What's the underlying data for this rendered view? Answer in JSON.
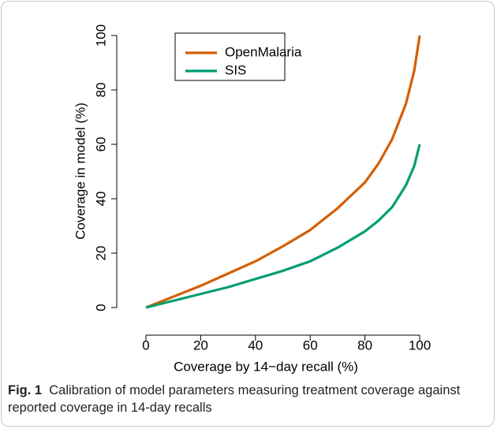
{
  "chart_data": {
    "type": "line",
    "xlabel": "Coverage by 14−day recall (%)",
    "ylabel": "Coverage in model (%)",
    "x": [
      0,
      10,
      20,
      30,
      40,
      50,
      60,
      70,
      80,
      85,
      90,
      95,
      98,
      100
    ],
    "series": [
      {
        "name": "OpenMalaria",
        "color": "#d55e00",
        "values": [
          0,
          4,
          8,
          12.5,
          17,
          22.5,
          28.5,
          36.5,
          46,
          53,
          62,
          75,
          87,
          100
        ]
      },
      {
        "name": "SIS",
        "color": "#009e73",
        "values": [
          0,
          2.5,
          5,
          7.5,
          10.5,
          13.5,
          17,
          22,
          28,
          32,
          37,
          45,
          52,
          60
        ]
      }
    ],
    "xlim": [
      0,
      100
    ],
    "xticks": [
      0,
      20,
      40,
      60,
      80,
      100
    ],
    "ylim": [
      0,
      100
    ],
    "yticks": [
      0,
      20,
      40,
      60,
      80,
      100
    ],
    "grid": false,
    "legend": "top-left"
  },
  "caption": {
    "label": "Fig. 1",
    "text": "Calibration of model parameters measuring treatment coverage against reported coverage in 14-day recalls"
  }
}
